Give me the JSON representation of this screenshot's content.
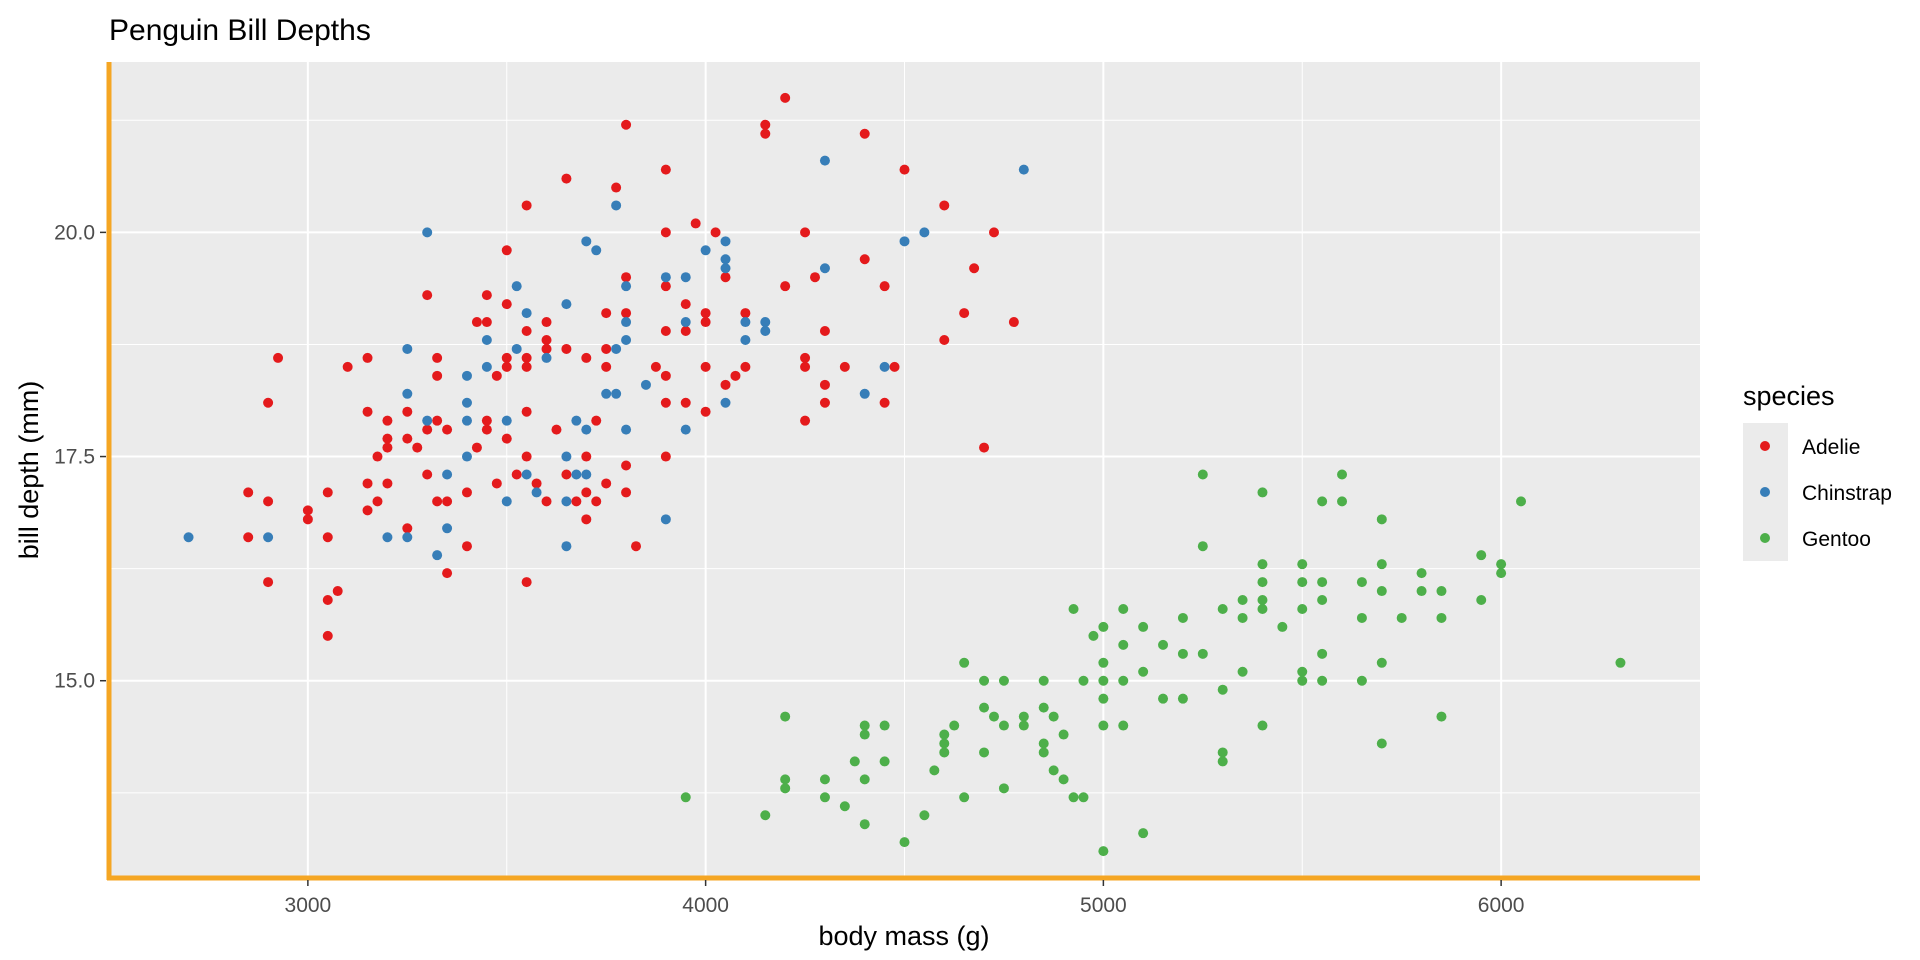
{
  "chart_data": {
    "type": "scatter",
    "title": "Penguin Bill Depths",
    "xlabel": "body mass (g)",
    "ylabel": "bill depth (mm)",
    "xlim": [
      2500,
      6500
    ],
    "ylim": [
      12.8,
      21.9
    ],
    "x_ticks": [
      3000,
      4000,
      5000,
      6000
    ],
    "x_tick_labels": [
      "3000",
      "4000",
      "5000",
      "6000"
    ],
    "y_ticks": [
      15.0,
      17.5,
      20.0
    ],
    "y_tick_labels": [
      "15.0",
      "17.5",
      "20.0"
    ],
    "grid": true,
    "legend": {
      "title": "species",
      "placement": "right"
    },
    "colors": {
      "panel_background": "#EBEBEB",
      "grid": "#FFFFFF",
      "axis_line": "#F5A623",
      "text": "#000000",
      "tick_text": "#4D4D4D"
    },
    "series": [
      {
        "name": "Adelie",
        "color": "#E41A1C",
        "points": [
          [
            2850,
            17.1
          ],
          [
            2850,
            16.6
          ],
          [
            2900,
            18.1
          ],
          [
            2900,
            17.0
          ],
          [
            2900,
            16.1
          ],
          [
            2925,
            18.6
          ],
          [
            3000,
            16.9
          ],
          [
            3000,
            16.8
          ],
          [
            3050,
            17.1
          ],
          [
            3050,
            16.6
          ],
          [
            3050,
            15.9
          ],
          [
            3050,
            15.5
          ],
          [
            3075,
            16.0
          ],
          [
            3100,
            18.5
          ],
          [
            3150,
            18.6
          ],
          [
            3150,
            18.0
          ],
          [
            3150,
            17.2
          ],
          [
            3150,
            16.9
          ],
          [
            3175,
            17.5
          ],
          [
            3175,
            17.0
          ],
          [
            3200,
            17.9
          ],
          [
            3200,
            17.7
          ],
          [
            3200,
            17.6
          ],
          [
            3200,
            17.2
          ],
          [
            3250,
            18.0
          ],
          [
            3250,
            17.7
          ],
          [
            3250,
            16.7
          ],
          [
            3275,
            17.6
          ],
          [
            3300,
            19.3
          ],
          [
            3300,
            17.8
          ],
          [
            3300,
            17.3
          ],
          [
            3325,
            18.6
          ],
          [
            3325,
            18.4
          ],
          [
            3325,
            17.9
          ],
          [
            3325,
            17.0
          ],
          [
            3350,
            17.8
          ],
          [
            3350,
            17.0
          ],
          [
            3350,
            16.2
          ],
          [
            3400,
            17.1
          ],
          [
            3400,
            16.5
          ],
          [
            3425,
            19.0
          ],
          [
            3425,
            17.6
          ],
          [
            3450,
            19.3
          ],
          [
            3450,
            19.0
          ],
          [
            3450,
            17.9
          ],
          [
            3450,
            17.8
          ],
          [
            3475,
            18.4
          ],
          [
            3475,
            17.2
          ],
          [
            3500,
            19.8
          ],
          [
            3500,
            19.2
          ],
          [
            3500,
            18.6
          ],
          [
            3500,
            18.5
          ],
          [
            3500,
            17.7
          ],
          [
            3525,
            17.3
          ],
          [
            3550,
            20.3
          ],
          [
            3550,
            18.9
          ],
          [
            3550,
            18.6
          ],
          [
            3550,
            18.5
          ],
          [
            3550,
            18.0
          ],
          [
            3550,
            17.5
          ],
          [
            3550,
            16.1
          ],
          [
            3575,
            17.2
          ],
          [
            3600,
            19.0
          ],
          [
            3600,
            18.8
          ],
          [
            3600,
            18.7
          ],
          [
            3600,
            17.0
          ],
          [
            3625,
            17.8
          ],
          [
            3650,
            20.6
          ],
          [
            3650,
            18.7
          ],
          [
            3650,
            17.3
          ],
          [
            3675,
            17.0
          ],
          [
            3700,
            18.6
          ],
          [
            3700,
            17.5
          ],
          [
            3700,
            17.1
          ],
          [
            3700,
            16.8
          ],
          [
            3725,
            17.9
          ],
          [
            3725,
            17.0
          ],
          [
            3750,
            19.1
          ],
          [
            3750,
            18.7
          ],
          [
            3750,
            18.5
          ],
          [
            3750,
            17.2
          ],
          [
            3775,
            20.5
          ],
          [
            3800,
            21.2
          ],
          [
            3800,
            19.5
          ],
          [
            3800,
            19.1
          ],
          [
            3800,
            17.4
          ],
          [
            3800,
            17.1
          ],
          [
            3825,
            16.5
          ],
          [
            3875,
            18.5
          ],
          [
            3900,
            20.7
          ],
          [
            3900,
            20.0
          ],
          [
            3900,
            19.4
          ],
          [
            3900,
            18.9
          ],
          [
            3900,
            18.4
          ],
          [
            3900,
            18.1
          ],
          [
            3900,
            17.5
          ],
          [
            3950,
            19.2
          ],
          [
            3950,
            18.9
          ],
          [
            3950,
            18.1
          ],
          [
            3975,
            20.1
          ],
          [
            4000,
            19.1
          ],
          [
            4000,
            19.0
          ],
          [
            4000,
            18.5
          ],
          [
            4000,
            18.0
          ],
          [
            4025,
            20.0
          ],
          [
            4050,
            19.5
          ],
          [
            4050,
            18.3
          ],
          [
            4075,
            18.4
          ],
          [
            4100,
            19.1
          ],
          [
            4100,
            18.5
          ],
          [
            4150,
            21.2
          ],
          [
            4150,
            21.1
          ],
          [
            4200,
            21.5
          ],
          [
            4200,
            19.4
          ],
          [
            4250,
            20.0
          ],
          [
            4250,
            18.6
          ],
          [
            4250,
            18.5
          ],
          [
            4250,
            17.9
          ],
          [
            4275,
            19.5
          ],
          [
            4300,
            18.9
          ],
          [
            4300,
            18.3
          ],
          [
            4300,
            18.1
          ],
          [
            4350,
            18.5
          ],
          [
            4400,
            21.1
          ],
          [
            4400,
            19.7
          ],
          [
            4450,
            19.4
          ],
          [
            4450,
            18.1
          ],
          [
            4475,
            18.5
          ],
          [
            4500,
            20.7
          ],
          [
            4600,
            20.3
          ],
          [
            4600,
            18.8
          ],
          [
            4650,
            19.1
          ],
          [
            4675,
            19.6
          ],
          [
            4700,
            17.6
          ],
          [
            4725,
            20.0
          ],
          [
            4775,
            19.0
          ]
        ]
      },
      {
        "name": "Chinstrap",
        "color": "#377EB8",
        "points": [
          [
            2700,
            16.6
          ],
          [
            2900,
            16.6
          ],
          [
            3200,
            16.6
          ],
          [
            3250,
            18.7
          ],
          [
            3250,
            18.2
          ],
          [
            3250,
            16.6
          ],
          [
            3300,
            20.0
          ],
          [
            3300,
            17.9
          ],
          [
            3325,
            16.4
          ],
          [
            3350,
            17.3
          ],
          [
            3350,
            16.7
          ],
          [
            3400,
            18.4
          ],
          [
            3400,
            18.1
          ],
          [
            3400,
            17.9
          ],
          [
            3400,
            17.5
          ],
          [
            3450,
            18.8
          ],
          [
            3450,
            18.5
          ],
          [
            3500,
            17.9
          ],
          [
            3500,
            17.0
          ],
          [
            3525,
            19.4
          ],
          [
            3525,
            18.7
          ],
          [
            3550,
            19.1
          ],
          [
            3550,
            17.3
          ],
          [
            3575,
            17.1
          ],
          [
            3600,
            18.6
          ],
          [
            3650,
            19.2
          ],
          [
            3650,
            17.5
          ],
          [
            3650,
            17.0
          ],
          [
            3650,
            16.5
          ],
          [
            3675,
            17.9
          ],
          [
            3675,
            17.3
          ],
          [
            3700,
            19.9
          ],
          [
            3700,
            17.8
          ],
          [
            3700,
            17.3
          ],
          [
            3725,
            19.8
          ],
          [
            3750,
            18.2
          ],
          [
            3775,
            20.3
          ],
          [
            3775,
            18.7
          ],
          [
            3775,
            18.2
          ],
          [
            3800,
            19.4
          ],
          [
            3800,
            19.0
          ],
          [
            3800,
            18.8
          ],
          [
            3800,
            17.8
          ],
          [
            3850,
            18.3
          ],
          [
            3900,
            19.5
          ],
          [
            3900,
            16.8
          ],
          [
            3950,
            19.5
          ],
          [
            3950,
            19.0
          ],
          [
            3950,
            17.8
          ],
          [
            4000,
            19.8
          ],
          [
            4050,
            19.9
          ],
          [
            4050,
            19.7
          ],
          [
            4050,
            19.6
          ],
          [
            4050,
            18.1
          ],
          [
            4100,
            19.0
          ],
          [
            4100,
            18.8
          ],
          [
            4150,
            19.0
          ],
          [
            4150,
            18.9
          ],
          [
            4300,
            20.8
          ],
          [
            4300,
            19.6
          ],
          [
            4400,
            18.2
          ],
          [
            4450,
            18.5
          ],
          [
            4500,
            19.9
          ],
          [
            4550,
            20.0
          ],
          [
            4800,
            20.7
          ]
        ]
      },
      {
        "name": "Gentoo",
        "color": "#4DAF4A",
        "points": [
          [
            3950,
            13.7
          ],
          [
            4150,
            13.5
          ],
          [
            4200,
            14.6
          ],
          [
            4200,
            13.9
          ],
          [
            4200,
            13.8
          ],
          [
            4300,
            13.9
          ],
          [
            4300,
            13.7
          ],
          [
            4350,
            13.6
          ],
          [
            4375,
            14.1
          ],
          [
            4400,
            14.5
          ],
          [
            4400,
            14.4
          ],
          [
            4400,
            13.9
          ],
          [
            4400,
            13.4
          ],
          [
            4450,
            14.5
          ],
          [
            4450,
            14.1
          ],
          [
            4500,
            13.2
          ],
          [
            4550,
            13.5
          ],
          [
            4575,
            14.0
          ],
          [
            4600,
            14.4
          ],
          [
            4600,
            14.3
          ],
          [
            4600,
            14.2
          ],
          [
            4625,
            14.5
          ],
          [
            4650,
            15.2
          ],
          [
            4650,
            13.7
          ],
          [
            4700,
            15.0
          ],
          [
            4700,
            14.7
          ],
          [
            4700,
            14.2
          ],
          [
            4725,
            14.6
          ],
          [
            4750,
            15.0
          ],
          [
            4750,
            14.5
          ],
          [
            4750,
            13.8
          ],
          [
            4800,
            14.6
          ],
          [
            4800,
            14.5
          ],
          [
            4850,
            15.0
          ],
          [
            4850,
            14.7
          ],
          [
            4850,
            14.3
          ],
          [
            4850,
            14.2
          ],
          [
            4875,
            14.6
          ],
          [
            4875,
            14.0
          ],
          [
            4900,
            14.4
          ],
          [
            4900,
            13.9
          ],
          [
            4925,
            15.8
          ],
          [
            4925,
            13.7
          ],
          [
            4950,
            15.0
          ],
          [
            4950,
            13.7
          ],
          [
            4975,
            15.5
          ],
          [
            5000,
            15.6
          ],
          [
            5000,
            15.2
          ],
          [
            5000,
            15.0
          ],
          [
            5000,
            14.8
          ],
          [
            5000,
            14.5
          ],
          [
            5000,
            13.1
          ],
          [
            5050,
            15.8
          ],
          [
            5050,
            15.4
          ],
          [
            5050,
            15.0
          ],
          [
            5050,
            14.5
          ],
          [
            5100,
            15.6
          ],
          [
            5100,
            15.1
          ],
          [
            5100,
            13.3
          ],
          [
            5150,
            15.4
          ],
          [
            5150,
            14.8
          ],
          [
            5200,
            15.7
          ],
          [
            5200,
            15.3
          ],
          [
            5200,
            14.8
          ],
          [
            5250,
            17.3
          ],
          [
            5250,
            16.5
          ],
          [
            5250,
            15.3
          ],
          [
            5300,
            15.8
          ],
          [
            5300,
            14.9
          ],
          [
            5300,
            14.2
          ],
          [
            5300,
            14.1
          ],
          [
            5350,
            15.9
          ],
          [
            5350,
            15.7
          ],
          [
            5350,
            15.1
          ],
          [
            5400,
            17.1
          ],
          [
            5400,
            16.3
          ],
          [
            5400,
            16.1
          ],
          [
            5400,
            15.9
          ],
          [
            5400,
            15.8
          ],
          [
            5400,
            14.5
          ],
          [
            5450,
            15.6
          ],
          [
            5500,
            16.3
          ],
          [
            5500,
            16.1
          ],
          [
            5500,
            15.8
          ],
          [
            5500,
            15.1
          ],
          [
            5500,
            15.0
          ],
          [
            5550,
            17.0
          ],
          [
            5550,
            16.1
          ],
          [
            5550,
            15.9
          ],
          [
            5550,
            15.3
          ],
          [
            5550,
            15.0
          ],
          [
            5600,
            17.3
          ],
          [
            5600,
            17.0
          ],
          [
            5650,
            16.1
          ],
          [
            5650,
            15.7
          ],
          [
            5650,
            15.0
          ],
          [
            5700,
            16.8
          ],
          [
            5700,
            16.3
          ],
          [
            5700,
            16.0
          ],
          [
            5700,
            15.2
          ],
          [
            5700,
            14.3
          ],
          [
            5750,
            15.7
          ],
          [
            5800,
            16.2
          ],
          [
            5800,
            16.0
          ],
          [
            5850,
            16.0
          ],
          [
            5850,
            15.7
          ],
          [
            5850,
            14.6
          ],
          [
            5950,
            16.4
          ],
          [
            5950,
            15.9
          ],
          [
            6000,
            16.3
          ],
          [
            6000,
            16.2
          ],
          [
            6050,
            17.0
          ],
          [
            6300,
            15.2
          ]
        ]
      }
    ]
  }
}
